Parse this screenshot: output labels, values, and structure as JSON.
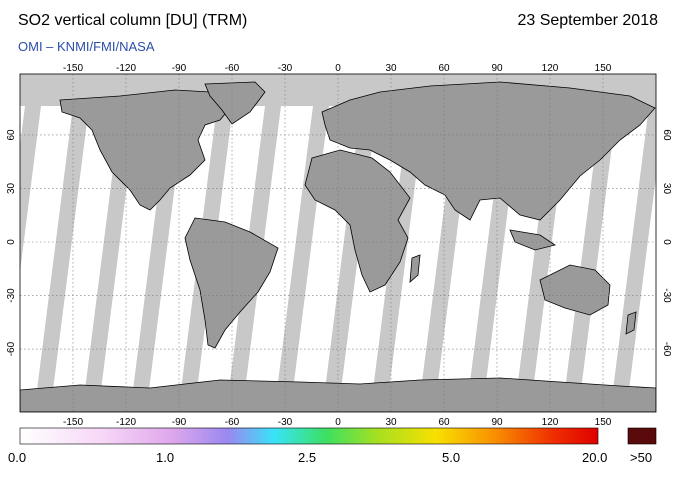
{
  "header": {
    "title": "SO2 vertical column [DU] (TRM)",
    "date": "23 September 2018",
    "credit": "OMI  –  KNMI/FMI/NASA"
  },
  "map": {
    "lon_ticks": [
      "-150",
      "-120",
      "-90",
      "-60",
      "-30",
      "0",
      "30",
      "60",
      "90",
      "120",
      "150"
    ],
    "lat_ticks": [
      "60",
      "30",
      "0",
      "-30",
      "-60"
    ],
    "colors": {
      "land": "#9a9a9a",
      "nodata": "#c8c8c8",
      "ocean": "#ffffff",
      "coast": "#000000"
    }
  },
  "colorbar": {
    "labels": [
      "0.0",
      "1.0",
      "2.5",
      "5.0",
      "20.0"
    ],
    "overflow_label": ">50",
    "stops": [
      "#ffffff",
      "#f7d8f7",
      "#e0a8ec",
      "#9a88f0",
      "#38e4f8",
      "#3ce060",
      "#a8e020",
      "#f8e000",
      "#f89000",
      "#f03000",
      "#e00000"
    ],
    "overflow_color": "#5a0a0a"
  }
}
